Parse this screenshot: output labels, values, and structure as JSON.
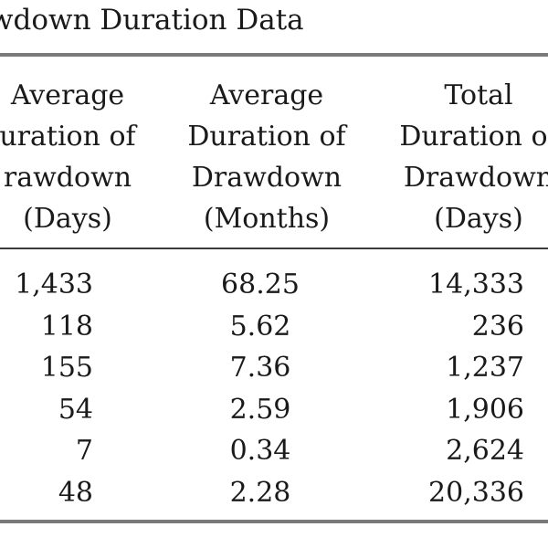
{
  "title": "wdown Duration Data",
  "headers": [
    [
      "Average",
      "uration of",
      "rawdown",
      "(Days)"
    ],
    [
      "Average",
      "Duration of",
      "Drawdown",
      "(Months)"
    ],
    [
      "Total",
      "Duration of",
      "Drawdown",
      "(Days)"
    ]
  ],
  "rows": [
    [
      "1,433",
      "68.25",
      "14,333"
    ],
    [
      "118",
      "5.62",
      "236"
    ],
    [
      "155",
      "7.36",
      "1,237"
    ],
    [
      "54",
      "2.59",
      "1,906"
    ],
    [
      "7",
      "0.34",
      "2,624"
    ],
    [
      "48",
      "2.28",
      "20,336"
    ]
  ]
}
